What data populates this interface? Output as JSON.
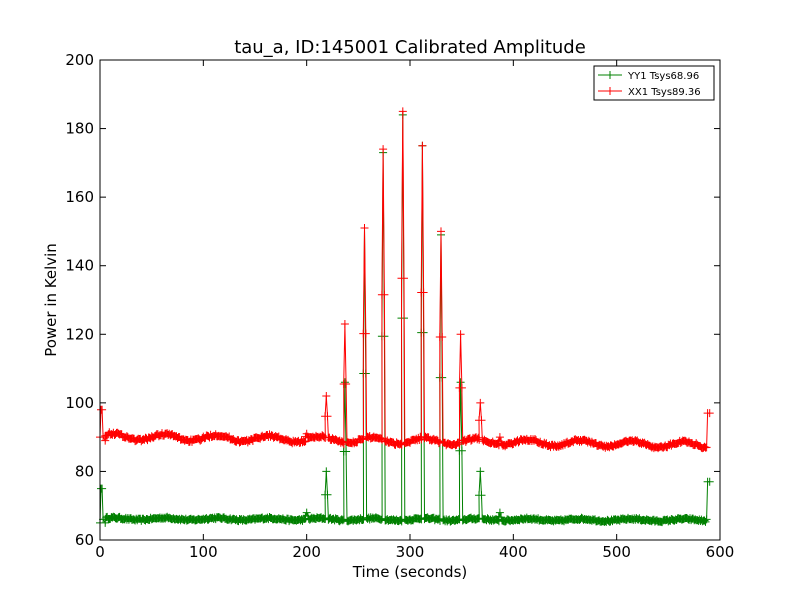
{
  "chart_data": {
    "type": "line",
    "title": "tau_a, ID:145001 Calibrated Amplitude",
    "xlabel": "Time (seconds)",
    "ylabel": "Power in Kelvin",
    "xlim": [
      0,
      600
    ],
    "ylim": [
      60,
      200
    ],
    "xticks": [
      "0",
      "100",
      "200",
      "300",
      "400",
      "500",
      "600"
    ],
    "yticks": [
      "60",
      "80",
      "100",
      "120",
      "140",
      "160",
      "180",
      "200"
    ],
    "grid": false,
    "legend_position": "top-right",
    "marker": "plus",
    "series": [
      {
        "name": "YY1 Tsys68.96",
        "color": "#008000",
        "base": 66,
        "points": [
          [
            0,
            65
          ],
          [
            1,
            75
          ],
          [
            2,
            75
          ],
          [
            3,
            66
          ],
          [
            5,
            65
          ],
          [
            587,
            66
          ],
          [
            588,
            77
          ],
          [
            590,
            77
          ]
        ],
        "peaks": [
          [
            200,
            68
          ],
          [
            219,
            80
          ],
          [
            237,
            106
          ],
          [
            256,
            151
          ],
          [
            274,
            173
          ],
          [
            293,
            184
          ],
          [
            312,
            175
          ],
          [
            330,
            149
          ],
          [
            349,
            106
          ],
          [
            368,
            80
          ],
          [
            387,
            68
          ]
        ]
      },
      {
        "name": "XX1 Tsys89.36",
        "color": "#ff0000",
        "base": 89,
        "points": [
          [
            0,
            90
          ],
          [
            1,
            98
          ],
          [
            2,
            98
          ],
          [
            3,
            90
          ],
          [
            5,
            89
          ],
          [
            587,
            87
          ],
          [
            588,
            97
          ],
          [
            590,
            97
          ]
        ],
        "peaks": [
          [
            200,
            91
          ],
          [
            219,
            102
          ],
          [
            237,
            123
          ],
          [
            256,
            151
          ],
          [
            274,
            174
          ],
          [
            293,
            185
          ],
          [
            312,
            175
          ],
          [
            330,
            150
          ],
          [
            349,
            120
          ],
          [
            368,
            100
          ],
          [
            387,
            90
          ]
        ]
      }
    ]
  }
}
